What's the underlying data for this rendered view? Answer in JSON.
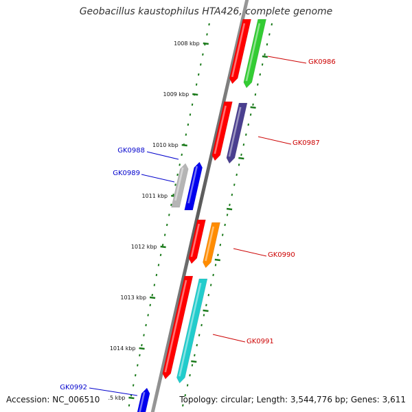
{
  "title": "Geobacillus kaustophilus HTA426, complete genome",
  "footer": {
    "accession": "Accession: NC_006510",
    "summary": "Topology: circular; Length: 3,544,776 bp; Genes: 3,611"
  },
  "kbp_labels": [
    "1008 kbp",
    "1009 kbp",
    "1010 kbp",
    "1011 kbp",
    "1012 kbp",
    "1013 kbp",
    "1014 kbp",
    ".5 kbp"
  ],
  "genes": [
    {
      "label": "GK0986",
      "strand": "right",
      "color": "#33cc33"
    },
    {
      "label": "GK0987",
      "strand": "right",
      "color": "#4a3f8f"
    },
    {
      "label": "GK0988",
      "strand": "left",
      "color": "#b5b5b5"
    },
    {
      "label": "GK0989",
      "strand": "left",
      "color": "#0000ee"
    },
    {
      "label": "GK0990",
      "strand": "right",
      "color": "#ff8c00"
    },
    {
      "label": "GK0991",
      "strand": "right",
      "color": "#22cccc"
    },
    {
      "label": "GK0992",
      "strand": "left",
      "color": "#0000ee"
    }
  ],
  "colors": {
    "right_label": "#cc0000",
    "left_label": "#0000cc",
    "cds_red": "#ff0000",
    "ticks": "#1a7a1a"
  }
}
